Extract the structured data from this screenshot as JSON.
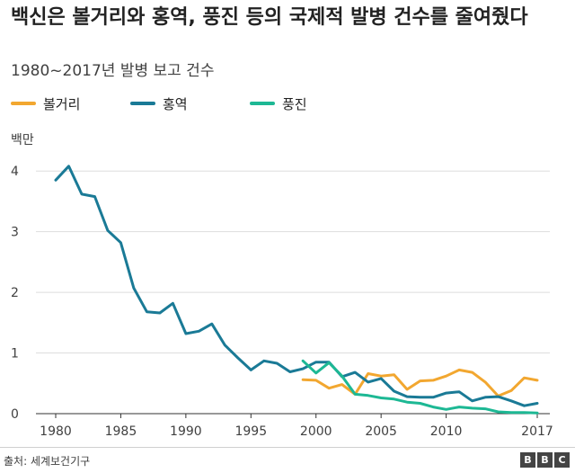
{
  "chart_data": {
    "type": "line",
    "title": "백신은 볼거리와 홍역, 풍진 등의 국제적 발병 건수를 줄여줬다",
    "subtitle": "1980~2017년 발병 보고 건수",
    "ylabel": "백만",
    "xlabel": "",
    "xlim": [
      1980,
      2017
    ],
    "ylim": [
      0,
      4.3
    ],
    "x_ticks": [
      1980,
      1985,
      1990,
      1995,
      2000,
      2005,
      2010,
      2017
    ],
    "y_ticks": [
      0,
      1,
      2,
      3,
      4
    ],
    "grid": "horizontal",
    "legend_position": "top",
    "series": [
      {
        "name": "볼거리",
        "color": "#f2a730",
        "x": [
          1999,
          2000,
          2001,
          2002,
          2003,
          2004,
          2005,
          2006,
          2007,
          2008,
          2009,
          2010,
          2011,
          2012,
          2013,
          2014,
          2015,
          2016,
          2017
        ],
        "values": [
          0.56,
          0.55,
          0.42,
          0.48,
          0.32,
          0.66,
          0.62,
          0.64,
          0.4,
          0.54,
          0.55,
          0.62,
          0.72,
          0.68,
          0.52,
          0.29,
          0.38,
          0.59,
          0.55
        ]
      },
      {
        "name": "홍역",
        "color": "#1a7a96",
        "x": [
          1980,
          1981,
          1982,
          1983,
          1984,
          1985,
          1986,
          1987,
          1988,
          1989,
          1990,
          1991,
          1992,
          1993,
          1994,
          1995,
          1996,
          1997,
          1998,
          1999,
          2000,
          2001,
          2002,
          2003,
          2004,
          2005,
          2006,
          2007,
          2008,
          2009,
          2010,
          2011,
          2012,
          2013,
          2014,
          2015,
          2016,
          2017
        ],
        "values": [
          3.85,
          4.08,
          3.62,
          3.58,
          3.02,
          2.82,
          2.07,
          1.68,
          1.66,
          1.82,
          1.32,
          1.36,
          1.48,
          1.13,
          0.92,
          0.72,
          0.87,
          0.83,
          0.69,
          0.74,
          0.85,
          0.85,
          0.61,
          0.68,
          0.52,
          0.58,
          0.37,
          0.28,
          0.27,
          0.27,
          0.34,
          0.36,
          0.21,
          0.27,
          0.28,
          0.21,
          0.13,
          0.17
        ]
      },
      {
        "name": "풍진",
        "color": "#1db894",
        "x": [
          1999,
          2000,
          2001,
          2002,
          2003,
          2004,
          2005,
          2006,
          2007,
          2008,
          2009,
          2010,
          2011,
          2012,
          2013,
          2014,
          2015,
          2016,
          2017
        ],
        "values": [
          0.87,
          0.67,
          0.84,
          0.62,
          0.32,
          0.3,
          0.26,
          0.24,
          0.19,
          0.17,
          0.11,
          0.07,
          0.11,
          0.09,
          0.08,
          0.03,
          0.02,
          0.02,
          0.01
        ]
      }
    ]
  },
  "footer": {
    "source": "출처: 세계보건기구",
    "logo_letters": [
      "B",
      "B",
      "C"
    ]
  }
}
